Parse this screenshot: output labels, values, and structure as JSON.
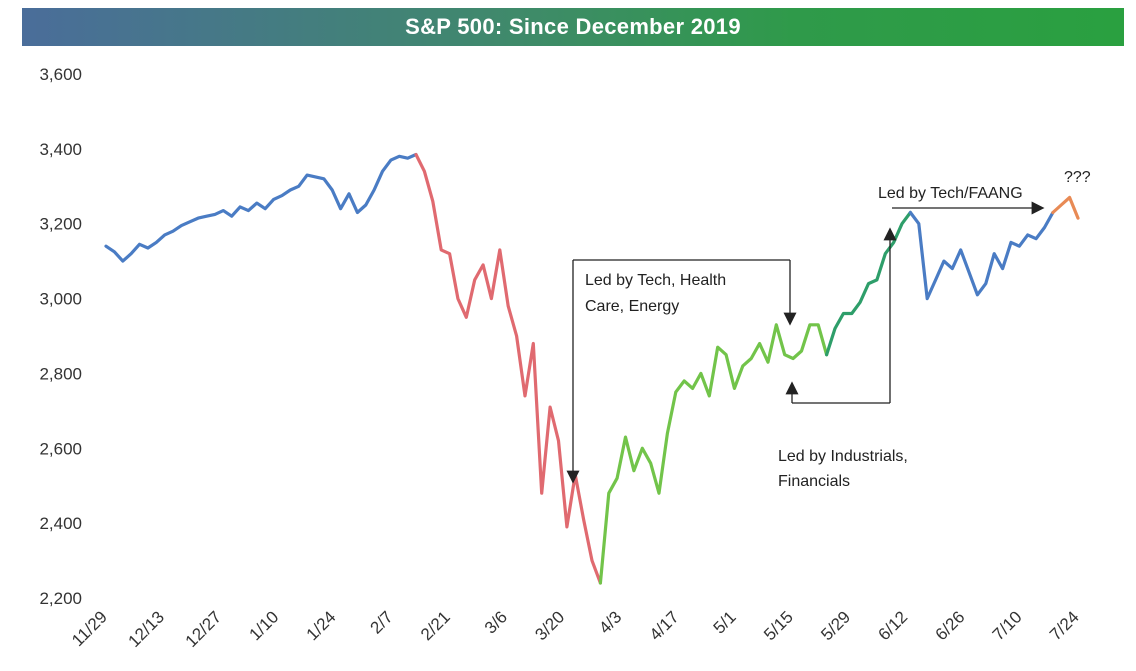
{
  "chart_data": {
    "type": "line",
    "title": "S&P 500: Since December 2019",
    "xlabel": "",
    "ylabel": "",
    "ylim": [
      2200,
      3600
    ],
    "yticks": [
      "2,200",
      "2,400",
      "2,600",
      "2,800",
      "3,000",
      "3,200",
      "3,400",
      "3,600"
    ],
    "ytick_values": [
      2200,
      2400,
      2600,
      2800,
      3000,
      3200,
      3400,
      3600
    ],
    "xticks": [
      "11/29",
      "12/13",
      "12/27",
      "1/10",
      "1/24",
      "2/7",
      "2/21",
      "3/6",
      "3/20",
      "4/3",
      "4/17",
      "5/1",
      "5/15",
      "5/29",
      "6/12",
      "6/26",
      "7/10",
      "7/24"
    ],
    "grid": false,
    "legend": "none",
    "colors": {
      "pre_crash": "#4a7cc4",
      "selloff": "#e06a70",
      "recovery_tech": "#72c44a",
      "industrials": "#2e9e6a",
      "post_peak": "#4a7cc4",
      "latest": "#e88a55"
    },
    "series": [
      {
        "segment": "pre_crash",
        "values": [
          3140,
          3125,
          3100,
          3120,
          3145,
          3135,
          3150,
          3170,
          3180,
          3195,
          3205,
          3215,
          3220,
          3225,
          3235,
          3220,
          3245,
          3235,
          3255,
          3240,
          3265,
          3275,
          3290,
          3300,
          3330,
          3325,
          3320,
          3290,
          3240,
          3280,
          3230,
          3250,
          3290,
          3340,
          3370,
          3380,
          3375,
          3385
        ]
      },
      {
        "segment": "selloff",
        "values": [
          3385,
          3340,
          3260,
          3130,
          3120,
          3000,
          2950,
          3050,
          3090,
          3000,
          3130,
          2980,
          2900,
          2740,
          2880,
          2480,
          2710,
          2620,
          2390,
          2530,
          2410,
          2300,
          2240
        ]
      },
      {
        "segment": "recovery_tech",
        "values": [
          2240,
          2480,
          2520,
          2630,
          2540,
          2600,
          2560,
          2480,
          2640,
          2750,
          2780,
          2760,
          2800,
          2740,
          2870,
          2850,
          2760,
          2820,
          2840,
          2880,
          2830,
          2930,
          2850,
          2840,
          2860,
          2930,
          2930,
          2850
        ]
      },
      {
        "segment": "industrials",
        "values": [
          2850,
          2920,
          2960,
          2960,
          2990,
          3040,
          3050,
          3120,
          3150,
          3200,
          3230
        ]
      },
      {
        "segment": "post_peak",
        "values": [
          3230,
          3200,
          3000,
          3050,
          3100,
          3080,
          3130,
          3070,
          3010,
          3040,
          3120,
          3080,
          3150,
          3140,
          3170,
          3160,
          3190,
          3230
        ]
      },
      {
        "segment": "latest",
        "values": [
          3230,
          3250,
          3270,
          3215
        ]
      }
    ],
    "annotations": [
      {
        "id": "tech-health-energy",
        "lines": [
          "Led by Tech, Health",
          "Care, Energy"
        ]
      },
      {
        "id": "industrials-financials",
        "lines": [
          "Led by Industrials,",
          "Financials"
        ]
      },
      {
        "id": "tech-faang",
        "lines": [
          "Led by Tech/FAANG"
        ]
      },
      {
        "id": "question",
        "lines": [
          "???"
        ]
      }
    ]
  }
}
